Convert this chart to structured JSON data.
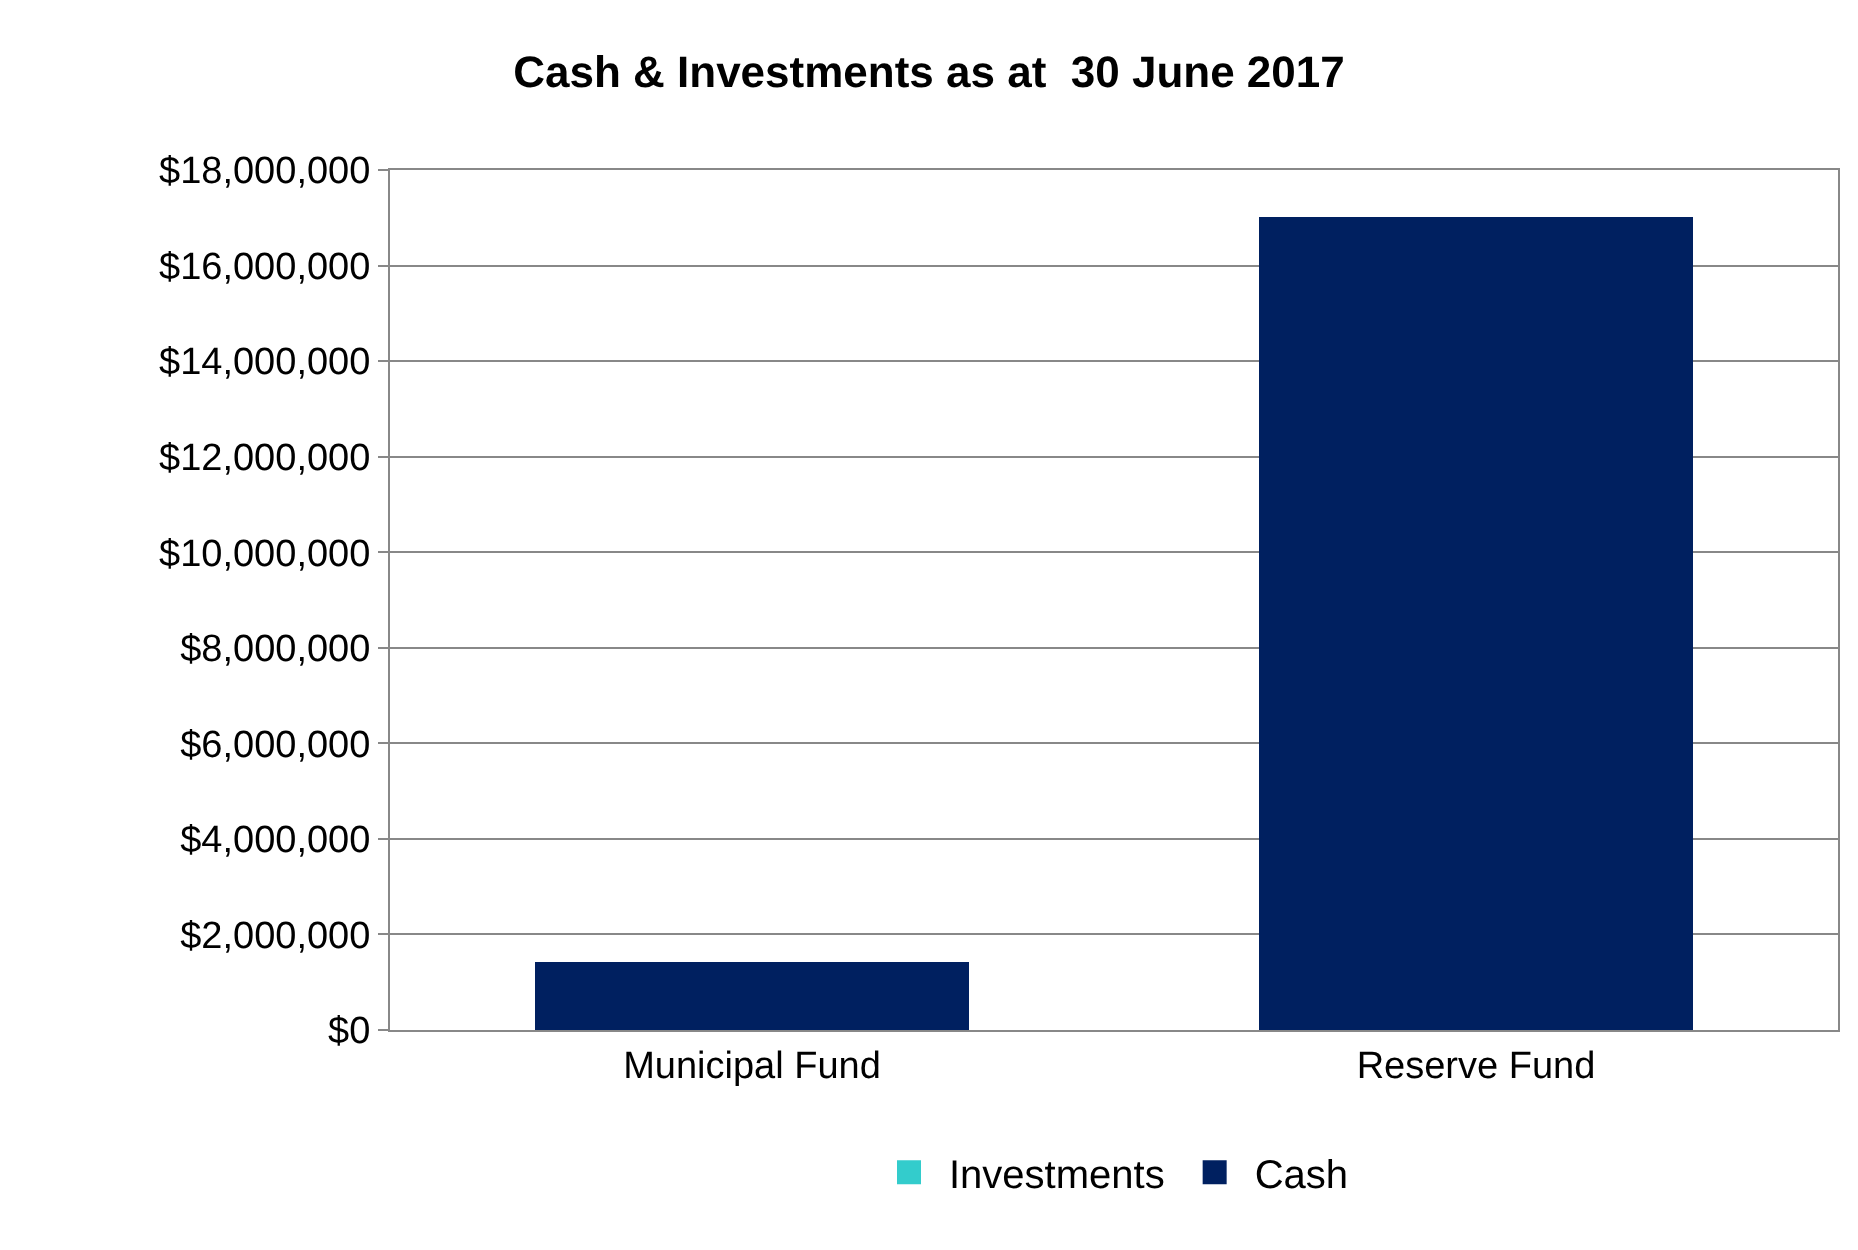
{
  "chart_data": {
    "type": "bar",
    "title": "Cash & Investments as at  30 June 2017",
    "categories": [
      "Municipal Fund",
      "Reserve Fund"
    ],
    "series": [
      {
        "name": "Cash",
        "color": "#002060",
        "values": [
          1420000,
          17020000
        ]
      },
      {
        "name": "Investments",
        "color": "#33cccc",
        "values": [
          0,
          0
        ]
      }
    ],
    "stacked": true,
    "ylim": [
      0,
      18000000
    ],
    "yticks": [
      {
        "value": 0,
        "label": "$0"
      },
      {
        "value": 2000000,
        "label": "$2,000,000"
      },
      {
        "value": 4000000,
        "label": "$4,000,000"
      },
      {
        "value": 6000000,
        "label": "$6,000,000"
      },
      {
        "value": 8000000,
        "label": "$8,000,000"
      },
      {
        "value": 10000000,
        "label": "$10,000,000"
      },
      {
        "value": 12000000,
        "label": "$12,000,000"
      },
      {
        "value": 14000000,
        "label": "$14,000,000"
      },
      {
        "value": 16000000,
        "label": "$16,000,000"
      },
      {
        "value": 18000000,
        "label": "$18,000,000"
      }
    ],
    "grid": "y",
    "legend": "bottom"
  }
}
